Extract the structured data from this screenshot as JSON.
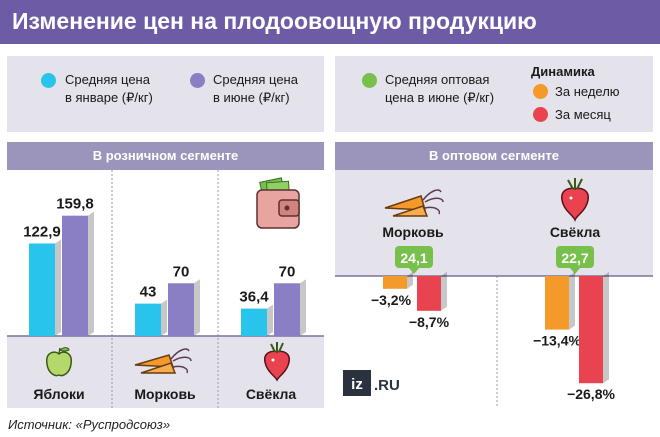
{
  "title": "Изменение цен на плодоовощную продукцию",
  "legend": {
    "jan_line1": "Средняя цена",
    "jan_line2": "в январе (₽/кг)",
    "jun_line1": "Средняя цена",
    "jun_line2": "в июне (₽/кг)",
    "whs_line1": "Средняя оптовая",
    "whs_line2": "цена в июне (₽/кг)",
    "dynamics_title": "Динамика",
    "week": "За неделю",
    "month": "За месяц"
  },
  "colors": {
    "title_bg": "#6d5ba6",
    "jan": "#29c4ec",
    "jun": "#8a7fc4",
    "wholesale": "#77c04b",
    "week": "#f39a2a",
    "month": "#e8434e",
    "panel": "#e4e2ea",
    "panel_header": "#9c95bb"
  },
  "source": "Источник: «Руспродсоюз»",
  "logo": "iz.ru",
  "chart_data": [
    {
      "type": "bar",
      "title": "В розничном сегменте",
      "categories": [
        "Яблоки",
        "Морковь",
        "Свёкла"
      ],
      "series": [
        {
          "name": "Средняя цена в январе (₽/кг)",
          "values": [
            122.9,
            43,
            36.4
          ],
          "labels": [
            "122,9",
            "43",
            "36,4"
          ]
        },
        {
          "name": "Средняя цена в июне (₽/кг)",
          "values": [
            159.8,
            70,
            70
          ],
          "labels": [
            "159,8",
            "70",
            "70"
          ]
        }
      ],
      "ylim": [
        0,
        170
      ],
      "icons": [
        "apple-icon",
        "carrot-icon",
        "beet-icon",
        "wallet-icon"
      ]
    },
    {
      "type": "bar",
      "title": "В оптовом сегменте",
      "categories": [
        "Морковь",
        "Свёкла"
      ],
      "wholesale_price": {
        "values": [
          24.1,
          22.7
        ],
        "labels": [
          "24,1",
          "22,7"
        ]
      },
      "series": [
        {
          "name": "За неделю",
          "values": [
            -3.2,
            -13.4
          ],
          "labels": [
            "−3,2%",
            "−13,4%"
          ]
        },
        {
          "name": "За месяц",
          "values": [
            -8.7,
            -26.8
          ],
          "labels": [
            "−8,7%",
            "−26,8%"
          ]
        }
      ],
      "ylim": [
        -30,
        0
      ],
      "icons": [
        "carrot-icon",
        "beet-icon"
      ]
    }
  ]
}
